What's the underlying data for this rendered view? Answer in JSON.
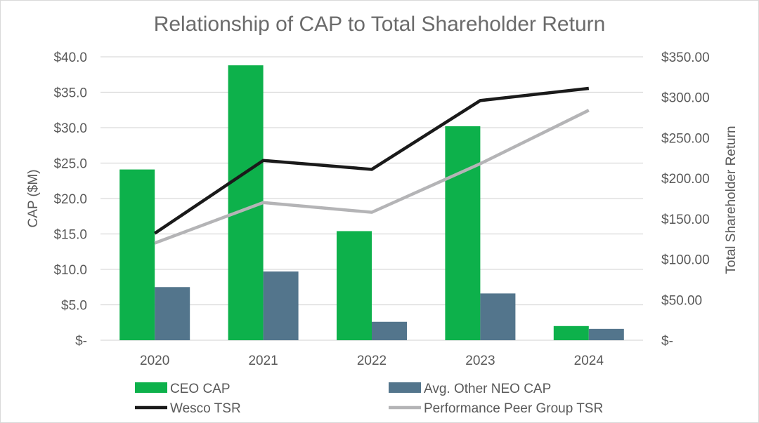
{
  "chart_data": {
    "type": "bar",
    "title": "Relationship of CAP to Total Shareholder Return",
    "categories": [
      "2020",
      "2021",
      "2022",
      "2023",
      "2024"
    ],
    "xlabel": "",
    "ylabel": "CAP ($M)",
    "y2label": "Total Shareholder Return",
    "ylim": [
      0,
      40
    ],
    "y2lim": [
      0,
      350
    ],
    "yticks": [
      {
        "value": 0,
        "label": "$-"
      },
      {
        "value": 5,
        "label": "$5.0"
      },
      {
        "value": 10,
        "label": "$10.0"
      },
      {
        "value": 15,
        "label": "$15.0"
      },
      {
        "value": 20,
        "label": "$20.0"
      },
      {
        "value": 25,
        "label": "$25.0"
      },
      {
        "value": 30,
        "label": "$30.0"
      },
      {
        "value": 35,
        "label": "$35.0"
      },
      {
        "value": 40,
        "label": "$40.0"
      }
    ],
    "y2ticks": [
      {
        "value": 0,
        "label": "$-"
      },
      {
        "value": 50,
        "label": "$50.00"
      },
      {
        "value": 100,
        "label": "$100.00"
      },
      {
        "value": 150,
        "label": "$150.00"
      },
      {
        "value": 200,
        "label": "$200.00"
      },
      {
        "value": 250,
        "label": "$250.00"
      },
      {
        "value": 300,
        "label": "$300.00"
      },
      {
        "value": 350,
        "label": "$350.00"
      }
    ],
    "grid": true,
    "legend_position": "bottom",
    "bar_series": [
      {
        "name": "CEO CAP",
        "color": "#0db14b",
        "values": [
          24.1,
          38.8,
          15.4,
          30.2,
          2.0
        ]
      },
      {
        "name": "Avg. Other NEO CAP",
        "color": "#53758c",
        "values": [
          7.5,
          9.7,
          2.6,
          6.6,
          1.6
        ]
      }
    ],
    "line_series": [
      {
        "name": "Wesco TSR",
        "color": "#1a1a1a",
        "values": [
          132,
          222,
          211,
          296,
          311
        ]
      },
      {
        "name": "Performance Peer Group TSR",
        "color": "#b4b4b6",
        "values": [
          120,
          170,
          158,
          218,
          284
        ]
      }
    ],
    "legend": [
      {
        "name": "CEO CAP",
        "kind": "bar",
        "color": "#0db14b"
      },
      {
        "name": "Avg. Other NEO CAP",
        "kind": "bar",
        "color": "#53758c"
      },
      {
        "name": "Wesco TSR",
        "kind": "line",
        "color": "#1a1a1a"
      },
      {
        "name": "Performance Peer Group TSR",
        "kind": "line",
        "color": "#b4b4b6"
      }
    ]
  }
}
